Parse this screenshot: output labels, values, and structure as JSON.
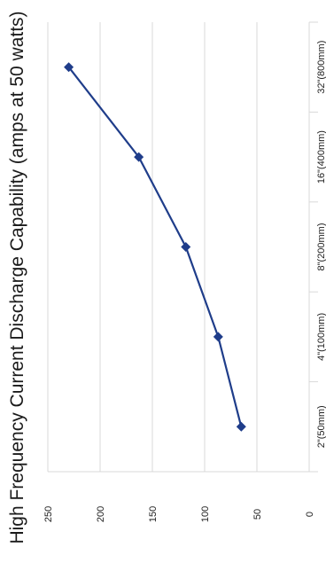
{
  "chart_data": {
    "type": "line",
    "title": "High Frequency Current Discharge Capability (amps at 50 watts)",
    "categories": [
      "2\"(50mm)",
      "4\"(100mm)",
      "8\"(200mm)",
      "16\"(400mm)",
      "32\"(800mm)"
    ],
    "series": [
      {
        "values": [
          65,
          87,
          118,
          163,
          230
        ]
      }
    ],
    "ylim": [
      0,
      250
    ],
    "yticks": [
      "0",
      "50",
      "100",
      "150",
      "200",
      "250"
    ],
    "grid": true,
    "orientation": "rotated-90",
    "colors": {
      "series": "#1f3d8a",
      "grid": "#d9d9d9"
    },
    "marker": "diamond"
  }
}
